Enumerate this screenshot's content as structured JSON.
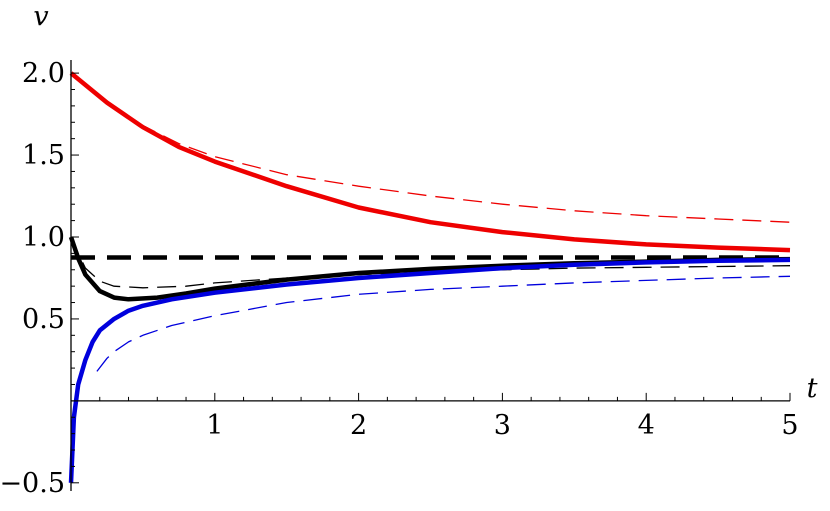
{
  "chart_data": {
    "type": "line",
    "title": "",
    "xlabel": "t",
    "ylabel": "v",
    "xlim": [
      0,
      5
    ],
    "ylim": [
      -0.55,
      2.08
    ],
    "grid": false,
    "x_ticks": [
      {
        "value": 1,
        "label": "1"
      },
      {
        "value": 2,
        "label": "2"
      },
      {
        "value": 3,
        "label": "3"
      },
      {
        "value": 4,
        "label": "4"
      },
      {
        "value": 5,
        "label": "5"
      }
    ],
    "y_ticks": [
      {
        "value": -0.5,
        "label": "−0.5"
      },
      {
        "value": 0.5,
        "label": "0.5"
      },
      {
        "value": 1.0,
        "label": "1.0"
      },
      {
        "value": 1.5,
        "label": "1.5"
      },
      {
        "value": 2.0,
        "label": "2.0"
      }
    ],
    "series": [
      {
        "color": "#ee0000",
        "style": "solid",
        "width": 4.5,
        "x": [
          0,
          0.25,
          0.5,
          0.75,
          1,
          1.5,
          2,
          2.5,
          3,
          3.5,
          4,
          4.5,
          5
        ],
        "y": [
          2.0,
          1.82,
          1.67,
          1.55,
          1.46,
          1.31,
          1.18,
          1.09,
          1.03,
          0.985,
          0.955,
          0.935,
          0.92
        ]
      },
      {
        "color": "#ee0000",
        "style": "dashed",
        "width": 1.3,
        "x": [
          0,
          0.25,
          0.5,
          0.75,
          1,
          1.5,
          2,
          2.5,
          3,
          3.5,
          4,
          4.5,
          5
        ],
        "y": [
          2.0,
          1.82,
          1.68,
          1.57,
          1.49,
          1.38,
          1.31,
          1.25,
          1.2,
          1.16,
          1.13,
          1.11,
          1.09
        ]
      },
      {
        "color": "#000000",
        "style": "solid",
        "width": 4.5,
        "x": [
          0,
          0.05,
          0.1,
          0.2,
          0.3,
          0.4,
          0.6,
          0.8,
          1,
          1.5,
          2,
          2.5,
          3,
          3.5,
          4,
          4.5,
          5
        ],
        "y": [
          1.0,
          0.87,
          0.77,
          0.67,
          0.63,
          0.62,
          0.63,
          0.655,
          0.685,
          0.74,
          0.78,
          0.805,
          0.825,
          0.84,
          0.85,
          0.86,
          0.865
        ]
      },
      {
        "color": "#000000",
        "style": "dashed",
        "width": 1.3,
        "x": [
          0,
          0.05,
          0.1,
          0.2,
          0.3,
          0.5,
          0.8,
          1,
          1.5,
          2,
          2.5,
          3,
          3.5,
          4,
          4.5,
          5
        ],
        "y": [
          1.0,
          0.9,
          0.81,
          0.73,
          0.7,
          0.69,
          0.7,
          0.72,
          0.75,
          0.77,
          0.79,
          0.8,
          0.81,
          0.815,
          0.82,
          0.825
        ]
      },
      {
        "color": "#000000",
        "style": "dashed",
        "width": 4.5,
        "x": [
          0,
          5
        ],
        "y": [
          0.875,
          0.875
        ]
      },
      {
        "color": "#0000dd",
        "style": "solid",
        "width": 4.5,
        "x": [
          0,
          0.02,
          0.05,
          0.1,
          0.15,
          0.2,
          0.3,
          0.4,
          0.5,
          0.7,
          1,
          1.5,
          2,
          2.5,
          3,
          3.5,
          4,
          4.5,
          5
        ],
        "y": [
          -0.5,
          -0.1,
          0.1,
          0.25,
          0.36,
          0.43,
          0.5,
          0.55,
          0.58,
          0.62,
          0.66,
          0.71,
          0.75,
          0.78,
          0.81,
          0.83,
          0.845,
          0.855,
          0.86
        ]
      },
      {
        "color": "#0000dd",
        "style": "dashed",
        "width": 1.3,
        "x": [
          0.18,
          0.25,
          0.3,
          0.4,
          0.5,
          0.7,
          1,
          1.5,
          2,
          2.5,
          3,
          3.5,
          4,
          4.5,
          5
        ],
        "y": [
          0.18,
          0.26,
          0.3,
          0.36,
          0.4,
          0.46,
          0.52,
          0.6,
          0.65,
          0.68,
          0.7,
          0.72,
          0.735,
          0.75,
          0.76
        ]
      }
    ]
  }
}
